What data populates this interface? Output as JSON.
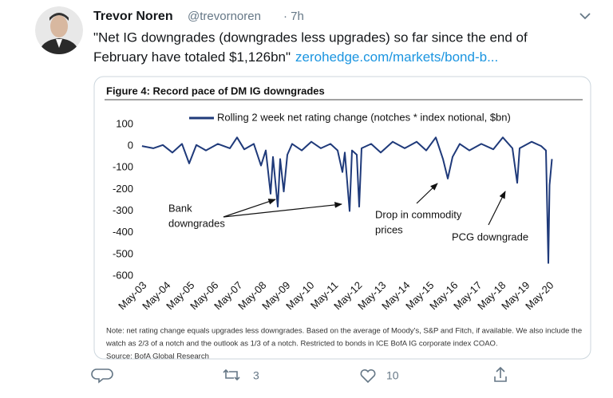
{
  "tweet": {
    "name": "Trevor Noren",
    "handle": "@trevornoren",
    "time": "· 7h",
    "text_lines": [
      "\"Net IG downgrades (downgrades less upgrades) so far since the end of",
      "February have totaled $1,126bn\""
    ],
    "link": "zerohedge.com/markets/bond-b...",
    "retweets": "3",
    "likes": "10"
  },
  "chart_data": {
    "type": "line",
    "title": "Figure 4: Record pace of DM IG downgrades",
    "series": [
      {
        "name": "Rolling 2 week net rating change (notches * index notional, $bn)",
        "color": "#1f3a7a",
        "x": [
          2003.33,
          2003.8,
          2004.2,
          2004.6,
          2005.0,
          2005.3,
          2005.6,
          2006.0,
          2006.5,
          2007.0,
          2007.3,
          2007.6,
          2008.0,
          2008.3,
          2008.5,
          2008.7,
          2008.8,
          2009.0,
          2009.1,
          2009.25,
          2009.4,
          2009.6,
          2010.0,
          2010.4,
          2010.8,
          2011.2,
          2011.5,
          2011.7,
          2011.8,
          2012.0,
          2012.1,
          2012.3,
          2012.4,
          2012.5,
          2012.9,
          2013.3,
          2013.8,
          2014.3,
          2014.8,
          2015.2,
          2015.6,
          2015.9,
          2016.1,
          2016.3,
          2016.6,
          2017.0,
          2017.5,
          2018.0,
          2018.4,
          2018.8,
          2019.0,
          2019.1,
          2019.6,
          2020.0,
          2020.2,
          2020.3,
          2020.35,
          2020.45
        ],
        "values": [
          0,
          -10,
          5,
          -30,
          10,
          -80,
          5,
          -20,
          10,
          -10,
          40,
          -15,
          10,
          -90,
          -20,
          -220,
          -50,
          -280,
          -60,
          -210,
          -40,
          10,
          -20,
          20,
          -10,
          10,
          -20,
          -120,
          -30,
          -300,
          -20,
          -40,
          -280,
          -10,
          10,
          -30,
          20,
          -10,
          20,
          -20,
          40,
          -60,
          -150,
          -50,
          10,
          -20,
          10,
          -15,
          40,
          -10,
          -170,
          -10,
          20,
          0,
          -20,
          -540,
          -180,
          -60
        ]
      }
    ],
    "xlim": [
      2003.2,
      2020.6
    ],
    "ylim": [
      -600,
      100
    ],
    "yticks": [
      100,
      0,
      -100,
      -200,
      -300,
      -400,
      -500,
      -600
    ],
    "xticks": [
      {
        "value": 2003.33,
        "label": "May-03"
      },
      {
        "value": 2004.33,
        "label": "May-04"
      },
      {
        "value": 2005.33,
        "label": "May-05"
      },
      {
        "value": 2006.33,
        "label": "May-06"
      },
      {
        "value": 2007.33,
        "label": "May-07"
      },
      {
        "value": 2008.33,
        "label": "May-08"
      },
      {
        "value": 2009.33,
        "label": "May-09"
      },
      {
        "value": 2010.33,
        "label": "May-10"
      },
      {
        "value": 2011.33,
        "label": "May-11"
      },
      {
        "value": 2012.33,
        "label": "May-12"
      },
      {
        "value": 2013.33,
        "label": "May-13"
      },
      {
        "value": 2014.33,
        "label": "May-14"
      },
      {
        "value": 2015.33,
        "label": "May-15"
      },
      {
        "value": 2016.33,
        "label": "May-16"
      },
      {
        "value": 2017.33,
        "label": "May-17"
      },
      {
        "value": 2018.33,
        "label": "May-18"
      },
      {
        "value": 2019.33,
        "label": "May-19"
      },
      {
        "value": 2020.33,
        "label": "May-20"
      }
    ],
    "annotations": [
      [
        "Bank",
        "downgrades"
      ],
      [
        "Drop in commodity",
        "prices"
      ],
      [
        "PCG downgrade"
      ]
    ],
    "note_lines": [
      "Note: net rating change equals upgrades less downgrades. Based on the average of Moody's, S&P and Fitch, if available. We also include the",
      "watch as 2/3 of a notch and the outlook as 1/3 of a notch. Restricted to bonds in ICE BofA IG corporate index COAO.",
      "Source: BofA Global Research"
    ]
  }
}
